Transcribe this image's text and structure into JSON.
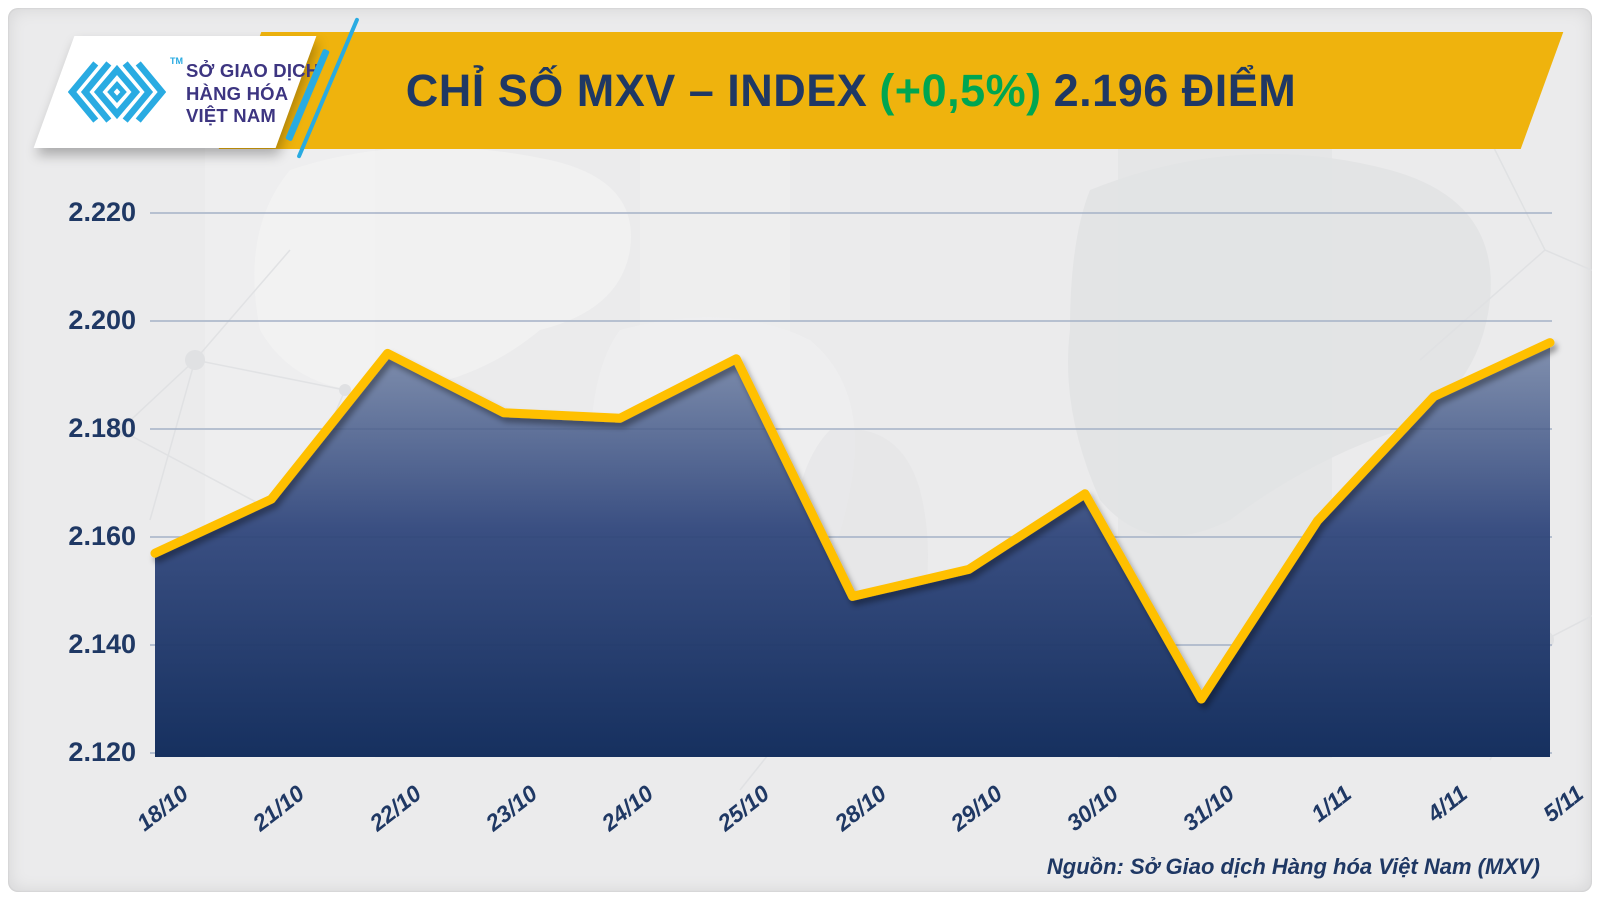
{
  "logo": {
    "tm_label": "TM",
    "org_lines": [
      "SỞ GIAO DỊCH",
      "HÀNG HÓA",
      "VIỆT NAM"
    ]
  },
  "header": {
    "title_main": "CHỈ SỐ MXV – INDEX",
    "title_change": "(+0,5%)",
    "title_value": "2.196 ĐIỂM"
  },
  "footer": {
    "source_label": "Nguồn: Sở Giao dịch Hàng hóa Việt Nam (MXV)"
  },
  "colors": {
    "banner_gold": "#EFB30D",
    "line_gold": "#FFC000",
    "navy_text": "#1F3864",
    "green_change": "#00A651",
    "cyan_accent": "#29ABE2",
    "gridline": "#B9C4D6",
    "area_top": "#8291AF",
    "area_mid": "#3A4F82",
    "area_bottom": "#16305F",
    "logo_text": "#3D3581",
    "background": "#EBEBEC"
  },
  "chart_data": {
    "type": "area",
    "title": "CHỈ SỐ MXV – INDEX (+0,5%) 2.196 ĐIỂM",
    "unit": "điểm",
    "x_labels": [
      "18/10",
      "21/10",
      "22/10",
      "23/10",
      "24/10",
      "25/10",
      "28/10",
      "29/10",
      "30/10",
      "31/10",
      "1/11",
      "4/11",
      "5/11"
    ],
    "values": [
      2157,
      2167,
      2194,
      2183,
      2182,
      2193,
      2149,
      2154,
      2168,
      2130,
      2163,
      2186,
      2196
    ],
    "ylim": [
      2120,
      2220
    ],
    "yticks": [
      2220,
      2200,
      2180,
      2160,
      2140,
      2120
    ],
    "ytick_labels": [
      "2.220",
      "2.200",
      "2.180",
      "2.160",
      "2.140",
      "2.120"
    ],
    "grid": true,
    "legend": false,
    "xlabel": "",
    "ylabel": ""
  }
}
